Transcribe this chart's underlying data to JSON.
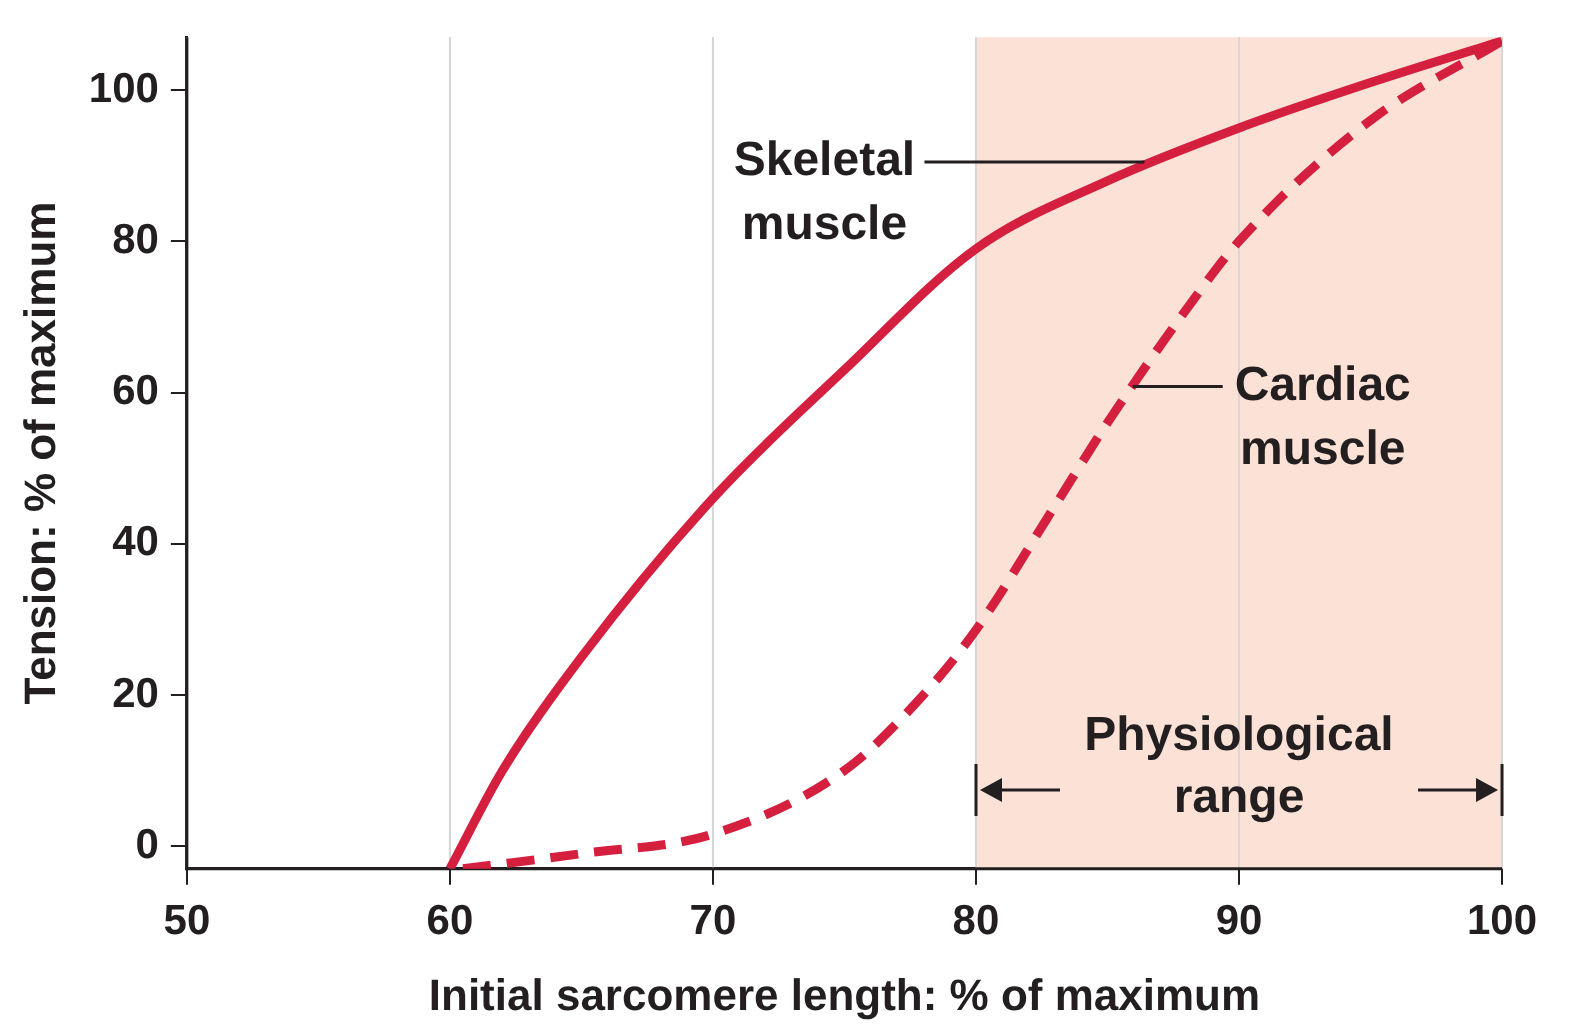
{
  "chart_data": {
    "type": "line",
    "xlabel": "Initial sarcomere length: % of maximum",
    "ylabel": "Tension: % of maximum",
    "xlim": [
      50,
      100
    ],
    "xticks": [
      50,
      60,
      70,
      80,
      90,
      100
    ],
    "ylim": [
      -3,
      107
    ],
    "yticks": [
      0,
      20,
      40,
      60,
      80,
      100
    ],
    "grid": "x",
    "legend": false,
    "bands": [
      {
        "axis": "x",
        "from": 80,
        "to": 100,
        "label": "Physiological range",
        "color": "#fbe1d6"
      }
    ],
    "series": [
      {
        "name": "Skeletal muscle",
        "color": "#d51f3f",
        "line_style": "solid",
        "x": [
          60,
          62,
          65,
          70,
          75,
          80,
          85,
          90,
          95,
          100
        ],
        "values": [
          -3,
          10,
          25,
          46,
          63,
          79,
          88,
          95,
          101,
          106.5
        ]
      },
      {
        "name": "Cardiac muscle",
        "color": "#d51f3f",
        "line_style": "dashed",
        "x": [
          60.5,
          65,
          70,
          75,
          78,
          80,
          83,
          85,
          88,
          90,
          95,
          100
        ],
        "values": [
          -3,
          -1,
          1.6,
          10,
          20,
          28.6,
          45,
          56,
          71,
          80,
          96,
          106.5
        ]
      }
    ]
  }
}
